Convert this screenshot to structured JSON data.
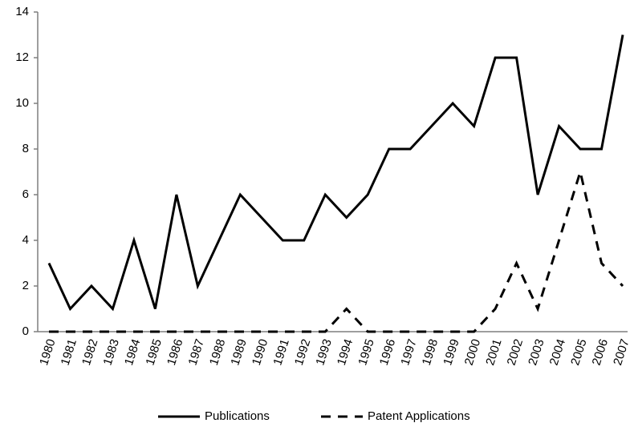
{
  "chart_data": {
    "type": "line",
    "categories": [
      "1980",
      "1981",
      "1982",
      "1983",
      "1984",
      "1985",
      "1986",
      "1987",
      "1988",
      "1989",
      "1990",
      "1991",
      "1992",
      "1993",
      "1994",
      "1995",
      "1996",
      "1997",
      "1998",
      "1999",
      "2000",
      "2001",
      "2002",
      "2003",
      "2004",
      "2005",
      "2006",
      "2007"
    ],
    "series": [
      {
        "name": "Publications",
        "color": "#000000",
        "dash": "solid",
        "values": [
          3,
          1,
          2,
          1,
          4,
          1,
          6,
          2,
          4,
          6,
          5,
          4,
          4,
          6,
          5,
          6,
          8,
          8,
          9,
          10,
          9,
          12,
          12,
          6,
          9,
          8,
          8,
          13
        ]
      },
      {
        "name": "Patent Applications",
        "color": "#000000",
        "dash": "dashed",
        "values": [
          0,
          0,
          0,
          0,
          0,
          0,
          0,
          0,
          0,
          0,
          0,
          0,
          0,
          0,
          1,
          0,
          0,
          0,
          0,
          0,
          0,
          1,
          3,
          1,
          4,
          7,
          3,
          2
        ]
      }
    ],
    "ylim": [
      0,
      14
    ],
    "yticks": [
      0,
      2,
      4,
      6,
      8,
      10,
      12,
      14
    ],
    "grid": false,
    "legend": "bottom"
  }
}
